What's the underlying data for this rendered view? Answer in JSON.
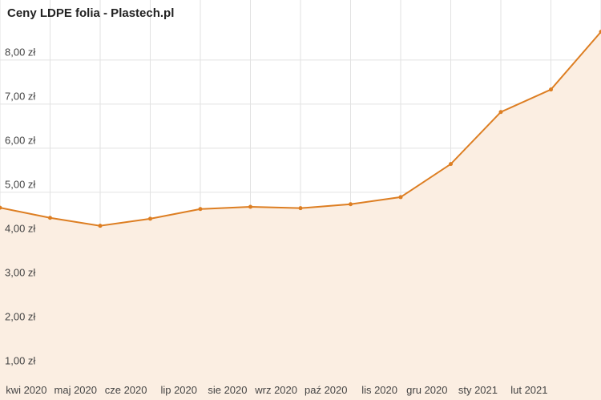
{
  "chart_data": {
    "type": "line",
    "title": "Ceny LDPE folia - Plastech.pl",
    "categories": [
      null,
      "kwi 2020",
      "maj 2020",
      "cze 2020",
      "lip 2020",
      "sie 2020",
      "wrz 2020",
      "paź 2020",
      "lis 2020",
      "gru 2020",
      "sty 2021",
      "lut 2021",
      null
    ],
    "values": [
      4.65,
      4.42,
      4.24,
      4.4,
      4.62,
      4.67,
      4.64,
      4.73,
      4.89,
      5.64,
      6.82,
      7.33,
      8.64
    ],
    "color": "#dd7e22",
    "area_color": "#fbeee2",
    "ylim": [
      0.29,
      9.36
    ],
    "yticks": [
      {
        "value": 1,
        "label": "1,00 zł"
      },
      {
        "value": 2,
        "label": "2,00 zł"
      },
      {
        "value": 3,
        "label": "3,00 zł"
      },
      {
        "value": 4,
        "label": "4,00 zł"
      },
      {
        "value": 5,
        "label": "5,00 zł"
      },
      {
        "value": 6,
        "label": "6,00 zł"
      },
      {
        "value": 7,
        "label": "7,00 zł"
      },
      {
        "value": 8,
        "label": "8,00 zł"
      }
    ],
    "grid": true
  }
}
